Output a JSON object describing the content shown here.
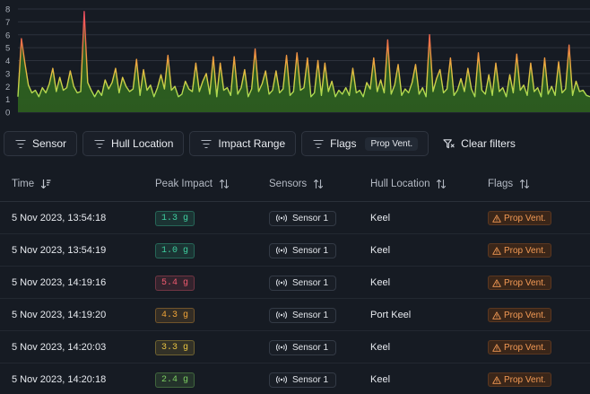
{
  "chart_data": {
    "type": "area",
    "yticks": [
      "8",
      "7",
      "6",
      "5",
      "4",
      "3",
      "2",
      "1",
      "0"
    ],
    "ylim": [
      0,
      8
    ],
    "xlim": [
      0,
      164
    ],
    "values": [
      1.2,
      5.7,
      3.8,
      2.1,
      1.5,
      1.7,
      1.2,
      1.9,
      1.5,
      2.2,
      3.4,
      1.6,
      2.7,
      1.7,
      1.9,
      3.2,
      2.0,
      1.5,
      1.6,
      7.8,
      2.3,
      1.7,
      1.2,
      1.7,
      1.3,
      2.5,
      1.8,
      2.3,
      3.4,
      1.5,
      2.7,
      2.0,
      1.6,
      1.8,
      4.1,
      1.3,
      3.3,
      1.7,
      2.1,
      1.2,
      1.9,
      2.9,
      1.8,
      4.4,
      1.7,
      2.0,
      1.2,
      1.4,
      2.4,
      1.8,
      1.6,
      3.8,
      1.6,
      2.4,
      3.0,
      1.4,
      4.3,
      1.2,
      3.8,
      1.7,
      1.9,
      1.3,
      4.3,
      1.4,
      1.9,
      3.3,
      1.2,
      1.8,
      4.9,
      1.6,
      2.2,
      3.2,
      1.4,
      1.7,
      3.2,
      1.5,
      1.8,
      4.4,
      1.3,
      1.6,
      4.6,
      1.7,
      1.9,
      4.2,
      1.2,
      1.5,
      4.0,
      1.3,
      3.8,
      1.6,
      2.4,
      1.2,
      1.7,
      1.4,
      1.9,
      1.3,
      3.4,
      1.5,
      1.7,
      1.2,
      2.3,
      1.8,
      4.2,
      1.6,
      2.5,
      1.5,
      5.6,
      1.4,
      2.1,
      3.7,
      1.3,
      1.8,
      1.5,
      2.3,
      3.7,
      1.4,
      1.9,
      1.2,
      6.0,
      1.6,
      2.6,
      3.3,
      1.5,
      1.8,
      4.2,
      1.3,
      1.7,
      2.6,
      1.6,
      3.4,
      1.8,
      1.2,
      4.6,
      1.7,
      1.4,
      2.9,
      1.3,
      3.8,
      1.6,
      1.9,
      1.2,
      2.9,
      1.5,
      4.5,
      1.7,
      2.1,
      1.3,
      3.8,
      1.6,
      1.9,
      1.2,
      4.2,
      1.4,
      2.0,
      1.3,
      3.9,
      1.5,
      1.8,
      5.2,
      1.3,
      2.4,
      1.6,
      1.7,
      1.3,
      1.2
    ]
  },
  "filters": {
    "sensor": "Sensor",
    "hull_location": "Hull Location",
    "impact_range": "Impact Range",
    "flags": "Flags",
    "flags_chip": "Prop Vent.",
    "clear": "Clear filters"
  },
  "table": {
    "headers": {
      "time": "Time",
      "peak_impact": "Peak Impact",
      "sensors": "Sensors",
      "hull_location": "Hull Location",
      "flags": "Flags"
    },
    "rows": [
      {
        "time": "5 Nov 2023, 13:54:18",
        "peak": "1.3 g",
        "peak_color": "#3fd0a0",
        "sensor": "Sensor 1",
        "hull": "Keel",
        "flag": "Prop Vent."
      },
      {
        "time": "5 Nov 2023, 13:54:19",
        "peak": "1.0 g",
        "peak_color": "#3fd0a0",
        "sensor": "Sensor 1",
        "hull": "Keel",
        "flag": "Prop Vent."
      },
      {
        "time": "5 Nov 2023, 14:19:16",
        "peak": "5.4 g",
        "peak_color": "#ee5a6f",
        "sensor": "Sensor 1",
        "hull": "Keel",
        "flag": "Prop Vent."
      },
      {
        "time": "5 Nov 2023, 14:19:20",
        "peak": "4.3 g",
        "peak_color": "#f0a438",
        "sensor": "Sensor 1",
        "hull": "Port Keel",
        "flag": "Prop Vent."
      },
      {
        "time": "5 Nov 2023, 14:20:03",
        "peak": "3.3 g",
        "peak_color": "#e8c341",
        "sensor": "Sensor 1",
        "hull": "Keel",
        "flag": "Prop Vent."
      },
      {
        "time": "5 Nov 2023, 14:20:18",
        "peak": "2.4 g",
        "peak_color": "#7ccf62",
        "sensor": "Sensor 1",
        "hull": "Keel",
        "flag": "Prop Vent."
      }
    ]
  }
}
